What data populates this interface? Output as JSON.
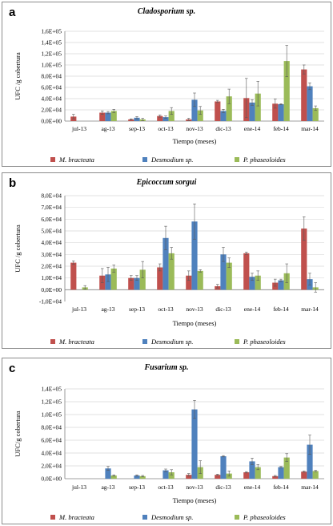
{
  "colors": {
    "mbracteata": "#c0504d",
    "desmodium": "#4f81bd",
    "pphaseoloides": "#9bbb59",
    "grid": "#d9d9d9",
    "axis": "#808080"
  },
  "legend": [
    "M. bracteata",
    "Desmodium sp.",
    "P. phaseoloides"
  ],
  "chart_data": [
    {
      "panel_letter": "a",
      "type": "bar",
      "title": "Cladosporium sp.",
      "xlabel": "Tiempo (meses)",
      "ylabel": "UFC /g cobertura",
      "categories": [
        "jul-13",
        "ag-13",
        "sep-13",
        "oct-13",
        "nov-13",
        "dic-13",
        "ene-14",
        "feb-14",
        "mar-14"
      ],
      "ylim": [
        0,
        160000
      ],
      "yticks": [
        0,
        20000,
        40000,
        60000,
        80000,
        100000,
        120000,
        140000,
        160000
      ],
      "ytick_labels": [
        "0,0E+00",
        "2,0E+04",
        "4,0E+04",
        "6,0E+04",
        "8,0E+04",
        "1,0E+05",
        "1,2E+05",
        "1,4E+05",
        "1,6E+05"
      ],
      "series": [
        {
          "name": "M. bracteata",
          "values": [
            8000,
            15000,
            3000,
            9000,
            3000,
            35000,
            41000,
            31000,
            92000
          ],
          "errors": [
            4000,
            3000,
            1000,
            2000,
            2000,
            2000,
            35000,
            8000,
            8000
          ]
        },
        {
          "name": "Desmodium sp.",
          "values": [
            null,
            15000,
            6000,
            7000,
            38000,
            18000,
            33000,
            30000,
            62000
          ],
          "errors": [
            null,
            2000,
            2000,
            2000,
            12000,
            3000,
            5000,
            1000,
            6000
          ]
        },
        {
          "name": "P. phaseoloides",
          "values": [
            null,
            18000,
            3000,
            18000,
            19000,
            44000,
            49000,
            107000,
            23000
          ],
          "errors": [
            null,
            3000,
            2000,
            6000,
            7000,
            13000,
            22000,
            28000,
            4000
          ]
        }
      ],
      "grid": true,
      "legend_position": "bottom"
    },
    {
      "panel_letter": "b",
      "type": "bar",
      "title": "Epicoccum sorgui",
      "xlabel": "Tiempo (meses)",
      "ylabel": "UFC /g cobertura",
      "categories": [
        "jul-13",
        "ag-13",
        "sep-13",
        "oct-13",
        "nov-13",
        "dic-13",
        "ene-14",
        "feb-14",
        "mar-14"
      ],
      "ylim": [
        -10000,
        80000
      ],
      "yticks": [
        -10000,
        0,
        10000,
        20000,
        30000,
        40000,
        50000,
        60000,
        70000,
        80000
      ],
      "ytick_labels": [
        "-1,0E+04",
        "0,0E+00",
        "1,0E+04",
        "2,0E+04",
        "3,0E+04",
        "4,0E+04",
        "5,0E+04",
        "6,0E+04",
        "7,0E+04",
        "8,0E+04"
      ],
      "series": [
        {
          "name": "M. bracteata",
          "values": [
            23000,
            12000,
            10000,
            19000,
            12000,
            3000,
            31000,
            6000,
            52000
          ],
          "errors": [
            1500,
            6000,
            2000,
            3000,
            4000,
            1500,
            1000,
            3000,
            10000
          ]
        },
        {
          "name": "Desmodium sp.",
          "values": [
            null,
            13000,
            10000,
            44000,
            58000,
            30000,
            11000,
            8000,
            9000
          ],
          "errors": [
            null,
            6000,
            2000,
            10000,
            15000,
            6000,
            3000,
            1000,
            5000
          ]
        },
        {
          "name": "P. phaseoloides",
          "values": [
            2000,
            18000,
            17000,
            31000,
            16000,
            23000,
            12000,
            14000,
            2000
          ],
          "errors": [
            1500,
            3000,
            7000,
            5000,
            1000,
            4000,
            4000,
            8000,
            4000
          ]
        }
      ],
      "grid": true,
      "legend_position": "bottom"
    },
    {
      "panel_letter": "c",
      "type": "bar",
      "title": "Fusarium sp.",
      "xlabel": "Tiempo (meses)",
      "ylabel": "UFC/g cobertura",
      "categories": [
        "jul-13",
        "ag-13",
        "sep-13",
        "oct-13",
        "nov-13",
        "dic-13",
        "ene-14",
        "feb-14",
        "mar-14"
      ],
      "ylim": [
        0,
        140000
      ],
      "yticks": [
        0,
        20000,
        40000,
        60000,
        80000,
        100000,
        120000,
        140000
      ],
      "ytick_labels": [
        "0,0E+00",
        "2,0E+04",
        "4,0E+04",
        "6,0E+04",
        "8,0E+04",
        "1,0E+05",
        "1,2E+05",
        "1,4E+05"
      ],
      "series": [
        {
          "name": "M. bracteata",
          "values": [
            null,
            null,
            null,
            null,
            6000,
            6000,
            10000,
            4000,
            11000
          ],
          "errors": [
            null,
            null,
            null,
            null,
            2000,
            1000,
            1000,
            1000,
            1000
          ]
        },
        {
          "name": "Desmodium sp.",
          "values": [
            null,
            16000,
            5000,
            13000,
            108000,
            35000,
            27000,
            18000,
            53000
          ],
          "errors": [
            null,
            3000,
            1000,
            2000,
            14000,
            1000,
            5000,
            1000,
            15000
          ]
        },
        {
          "name": "P. phaseoloides",
          "values": [
            null,
            5000,
            4000,
            10000,
            18000,
            8000,
            18000,
            33000,
            12000
          ],
          "errors": [
            null,
            1000,
            1000,
            4000,
            10000,
            4000,
            4000,
            6000,
            1000
          ]
        }
      ],
      "grid": true,
      "legend_position": "bottom"
    }
  ]
}
